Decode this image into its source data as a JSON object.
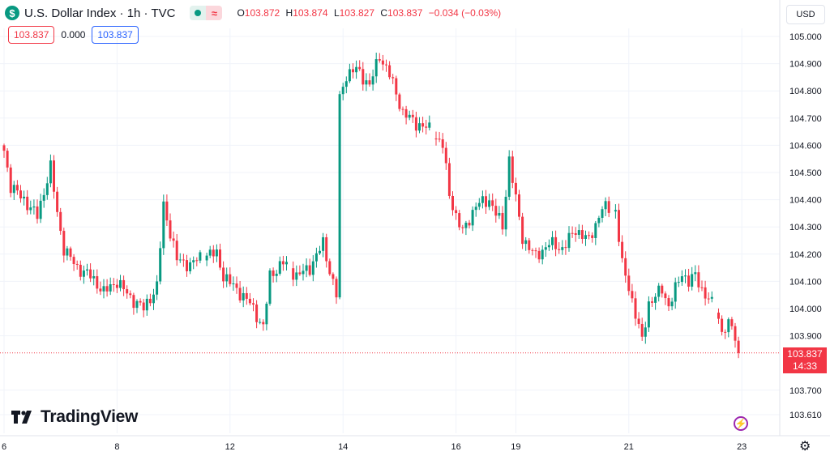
{
  "header": {
    "logo_glyph": "$",
    "title": "U.S. Dollar Index · 1h · TVC",
    "market_status": "open",
    "wave_glyph": "≈",
    "ohlc": {
      "open_label": "O",
      "open": "103.872",
      "high_label": "H",
      "high": "103.874",
      "low_label": "L",
      "low": "103.827",
      "close_label": "C",
      "close": "103.837",
      "change": "−0.034 (−0.03%)"
    }
  },
  "badges": {
    "left": "103.837",
    "middle": "0.000",
    "right": "103.837"
  },
  "currency_button": "USD",
  "last_price": {
    "value": "103.837",
    "countdown": "14:33"
  },
  "branding": {
    "name": "TradingView"
  },
  "colors": {
    "up": "#089981",
    "down": "#f23645",
    "grid": "#f0f3fa",
    "text": "#131722",
    "accent": "#2962ff"
  },
  "icons": {
    "settings": "gear-icon",
    "alert": "lightning-icon",
    "logo": "tradingview-logo-icon"
  },
  "chart_data": {
    "type": "candlestick",
    "title": "U.S. Dollar Index · 1h · TVC",
    "xlabel": "",
    "ylabel": "",
    "ylim": [
      103.59,
      105.05
    ],
    "y_ticks": [
      "105.000",
      "104.900",
      "104.800",
      "104.700",
      "104.600",
      "104.500",
      "104.400",
      "104.300",
      "104.200",
      "104.100",
      "104.000",
      "103.900",
      "103.700",
      "103.610"
    ],
    "x_ticks": [
      {
        "label": "6",
        "bar": 0
      },
      {
        "label": "8",
        "bar": 34
      },
      {
        "label": "12",
        "bar": 68
      },
      {
        "label": "14",
        "bar": 102
      },
      {
        "label": "16",
        "bar": 136
      },
      {
        "label": "19",
        "bar": 154
      },
      {
        "label": "21",
        "bar": 188
      },
      {
        "label": "23",
        "bar": 222
      }
    ],
    "last_price_line": 103.837,
    "close_path": [
      {
        "bar": 0,
        "v": 104.58
      },
      {
        "bar": 2,
        "v": 104.45
      },
      {
        "bar": 6,
        "v": 104.4
      },
      {
        "bar": 10,
        "v": 104.34
      },
      {
        "bar": 14,
        "v": 104.52
      },
      {
        "bar": 16,
        "v": 104.35
      },
      {
        "bar": 18,
        "v": 104.22
      },
      {
        "bar": 22,
        "v": 104.15
      },
      {
        "bar": 26,
        "v": 104.12
      },
      {
        "bar": 30,
        "v": 104.06
      },
      {
        "bar": 34,
        "v": 104.1
      },
      {
        "bar": 38,
        "v": 104.04
      },
      {
        "bar": 42,
        "v": 104.0
      },
      {
        "bar": 46,
        "v": 104.08
      },
      {
        "bar": 48,
        "v": 104.38
      },
      {
        "bar": 50,
        "v": 104.28
      },
      {
        "bar": 52,
        "v": 104.18
      },
      {
        "bar": 56,
        "v": 104.16
      },
      {
        "bar": 60,
        "v": 104.2
      },
      {
        "bar": 64,
        "v": 104.2
      },
      {
        "bar": 66,
        "v": 104.12
      },
      {
        "bar": 70,
        "v": 104.07
      },
      {
        "bar": 74,
        "v": 104.02
      },
      {
        "bar": 78,
        "v": 103.93
      },
      {
        "bar": 80,
        "v": 104.12
      },
      {
        "bar": 84,
        "v": 104.17
      },
      {
        "bar": 88,
        "v": 104.12
      },
      {
        "bar": 92,
        "v": 104.15
      },
      {
        "bar": 96,
        "v": 104.24
      },
      {
        "bar": 98,
        "v": 104.14
      },
      {
        "bar": 100,
        "v": 104.05
      },
      {
        "bar": 101,
        "v": 104.77
      },
      {
        "bar": 103,
        "v": 104.86
      },
      {
        "bar": 106,
        "v": 104.88
      },
      {
        "bar": 110,
        "v": 104.82
      },
      {
        "bar": 113,
        "v": 104.93
      },
      {
        "bar": 116,
        "v": 104.86
      },
      {
        "bar": 120,
        "v": 104.72
      },
      {
        "bar": 124,
        "v": 104.68
      },
      {
        "bar": 128,
        "v": 104.66
      },
      {
        "bar": 132,
        "v": 104.6
      },
      {
        "bar": 134,
        "v": 104.42
      },
      {
        "bar": 136,
        "v": 104.34
      },
      {
        "bar": 138,
        "v": 104.28
      },
      {
        "bar": 142,
        "v": 104.38
      },
      {
        "bar": 146,
        "v": 104.4
      },
      {
        "bar": 150,
        "v": 104.3
      },
      {
        "bar": 152,
        "v": 104.55
      },
      {
        "bar": 154,
        "v": 104.4
      },
      {
        "bar": 156,
        "v": 104.26
      },
      {
        "bar": 160,
        "v": 104.19
      },
      {
        "bar": 164,
        "v": 104.24
      },
      {
        "bar": 168,
        "v": 104.22
      },
      {
        "bar": 172,
        "v": 104.29
      },
      {
        "bar": 176,
        "v": 104.25
      },
      {
        "bar": 180,
        "v": 104.37
      },
      {
        "bar": 184,
        "v": 104.36
      },
      {
        "bar": 186,
        "v": 104.16
      },
      {
        "bar": 188,
        "v": 104.08
      },
      {
        "bar": 190,
        "v": 103.98
      },
      {
        "bar": 192,
        "v": 103.88
      },
      {
        "bar": 194,
        "v": 104.02
      },
      {
        "bar": 198,
        "v": 104.07
      },
      {
        "bar": 200,
        "v": 104.01
      },
      {
        "bar": 204,
        "v": 104.13
      },
      {
        "bar": 206,
        "v": 104.1
      },
      {
        "bar": 208,
        "v": 104.12
      },
      {
        "bar": 210,
        "v": 104.07
      },
      {
        "bar": 214,
        "v": 104.0
      },
      {
        "bar": 216,
        "v": 103.92
      },
      {
        "bar": 219,
        "v": 103.94
      },
      {
        "bar": 221,
        "v": 103.837
      }
    ]
  }
}
